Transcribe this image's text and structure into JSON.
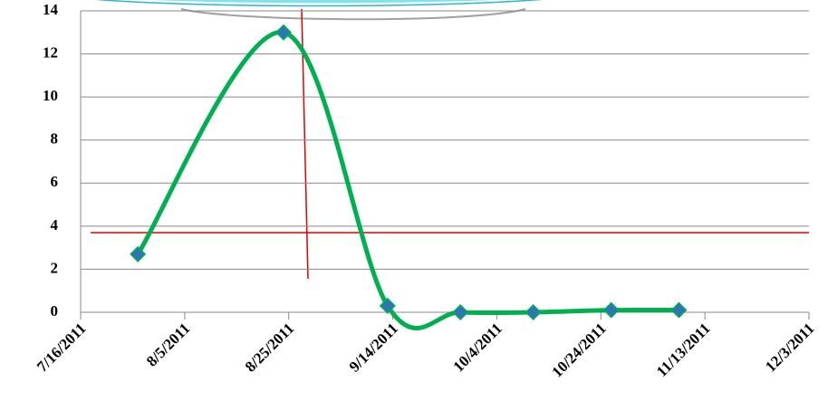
{
  "chart_data": {
    "type": "line",
    "x": [
      "2011-07-27",
      "2011-08-24",
      "2011-09-13",
      "2011-09-27",
      "2011-10-11",
      "2011-10-26",
      "2011-11-08"
    ],
    "values": [
      2.7,
      13,
      0.3,
      0,
      0,
      0.1,
      0.1
    ],
    "color": "#00b050",
    "marker_color": "#2e75b6",
    "xlim": [
      "2011-07-16",
      "2011-12-03"
    ],
    "xticks": [
      {
        "value": "2011-07-16",
        "label": "7/16/2011"
      },
      {
        "value": "2011-08-05",
        "label": "8/5/2011"
      },
      {
        "value": "2011-08-25",
        "label": "8/25/2011"
      },
      {
        "value": "2011-09-14",
        "label": "9/14/2011"
      },
      {
        "value": "2011-10-04",
        "label": "10/4/2011"
      },
      {
        "value": "2011-10-24",
        "label": "10/24/2011"
      },
      {
        "value": "2011-11-13",
        "label": "11/13/2011"
      },
      {
        "value": "2011-12-03",
        "label": "12/3/2011"
      }
    ],
    "ylim": [
      0,
      14
    ],
    "yticks": [
      0,
      2,
      4,
      6,
      8,
      10,
      12,
      14
    ],
    "grid": true,
    "reference_line": 3.7,
    "reference_color": "#e00000"
  }
}
